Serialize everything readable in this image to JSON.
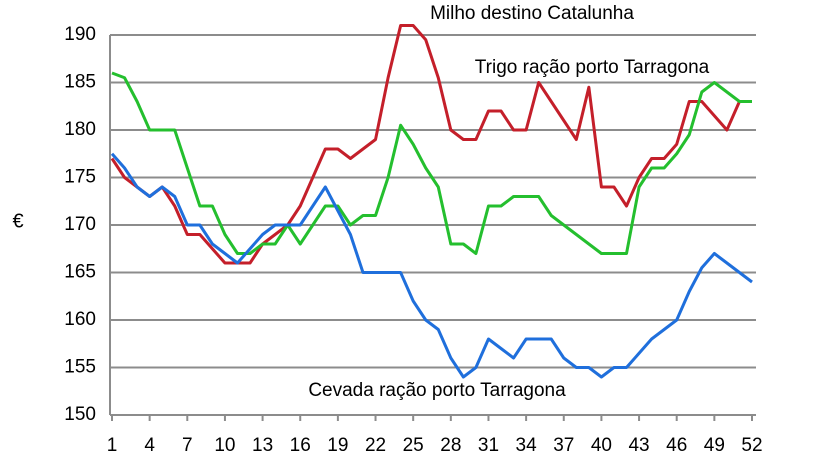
{
  "chart_data": {
    "type": "line",
    "y_label": "€",
    "x": [
      1,
      2,
      3,
      4,
      5,
      6,
      7,
      8,
      9,
      10,
      11,
      12,
      13,
      14,
      15,
      16,
      17,
      18,
      19,
      20,
      21,
      22,
      23,
      24,
      25,
      26,
      27,
      28,
      29,
      30,
      31,
      32,
      33,
      34,
      35,
      36,
      37,
      38,
      39,
      40,
      41,
      42,
      43,
      44,
      45,
      46,
      47,
      48,
      49,
      50,
      51,
      52
    ],
    "xlim": [
      1,
      52
    ],
    "xticks": [
      1,
      4,
      7,
      10,
      13,
      16,
      19,
      22,
      25,
      28,
      31,
      34,
      37,
      40,
      43,
      46,
      49,
      52
    ],
    "ylim": [
      150,
      190
    ],
    "yticks": [
      150,
      155,
      160,
      165,
      170,
      175,
      180,
      185,
      190
    ],
    "grid": true,
    "series": [
      {
        "name": "Milho destino Catalunha",
        "color": "#c41f2a",
        "values": [
          177,
          175,
          174,
          173,
          174,
          172,
          169,
          169,
          167.5,
          166,
          166,
          166,
          168,
          169,
          170,
          172,
          175,
          178,
          178,
          177,
          178,
          179,
          185.5,
          191,
          191,
          189.5,
          185.5,
          180,
          179,
          179,
          182,
          182,
          180,
          180,
          185,
          183,
          181,
          179,
          184.5,
          174,
          174,
          172,
          175,
          177,
          177,
          178.5,
          183,
          183,
          181.5,
          180,
          183,
          183
        ]
      },
      {
        "name": "Trigo ração porto Tarragona",
        "color": "#24bf2e",
        "values": [
          186,
          185.5,
          183,
          180,
          180,
          180,
          176,
          172,
          172,
          169,
          167,
          167,
          168,
          168,
          170,
          168,
          170,
          172,
          172,
          170,
          171,
          171,
          175,
          180.5,
          178.5,
          176,
          174,
          168,
          168,
          167,
          172,
          172,
          173,
          173,
          173,
          171,
          170,
          169,
          168,
          167,
          167,
          167,
          174,
          176,
          176,
          177.5,
          179.5,
          184,
          185,
          184,
          183,
          183
        ]
      },
      {
        "name": "Cevada ração porto Tarragona",
        "color": "#1f6fdc",
        "values": [
          177.5,
          176,
          174,
          173,
          174,
          173,
          170,
          170,
          168,
          167,
          166,
          167.5,
          169,
          170,
          170,
          170,
          172,
          174,
          171.5,
          169,
          165,
          165,
          165,
          165,
          162,
          160,
          159,
          156,
          154,
          155,
          158,
          157,
          156,
          158,
          158,
          158,
          156,
          155,
          155,
          154,
          155,
          155,
          156.5,
          158,
          159,
          160,
          163,
          165.5,
          167,
          166,
          165,
          164
        ]
      }
    ]
  }
}
